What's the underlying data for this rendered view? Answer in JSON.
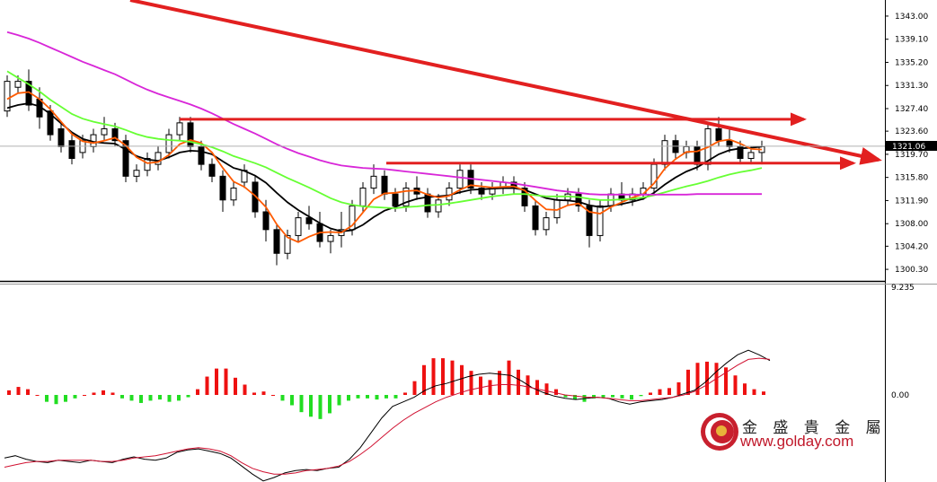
{
  "chart_data": [
    {
      "type": "candlestick",
      "panel": "price",
      "y_ticks": [
        "1343.00",
        "1339.10",
        "1335.20",
        "1331.30",
        "1327.40",
        "1323.60",
        "1319.70",
        "1315.80",
        "1311.90",
        "1308.00",
        "1304.20",
        "1300.30"
      ],
      "ylim": [
        1298.8,
        1344.2
      ],
      "current_price": "1321.06",
      "grid": false,
      "candles": [
        [
          1327.0,
          1333.0,
          1326.0,
          1332.0
        ],
        [
          1331.0,
          1333.0,
          1330.0,
          1332.0
        ],
        [
          1332.0,
          1334.0,
          1327.0,
          1328.0
        ],
        [
          1329.0,
          1331.0,
          1324.0,
          1326.0
        ],
        [
          1327.0,
          1328.0,
          1322.0,
          1323.0
        ],
        [
          1324.0,
          1325.0,
          1320.0,
          1321.0
        ],
        [
          1322.0,
          1323.0,
          1318.0,
          1319.0
        ],
        [
          1320.0,
          1323.0,
          1319.0,
          1322.0
        ],
        [
          1321.0,
          1324.0,
          1320.0,
          1323.0
        ],
        [
          1323.0,
          1326.0,
          1322.0,
          1324.0
        ],
        [
          1324.0,
          1325.0,
          1321.0,
          1322.0
        ],
        [
          1322.0,
          1323.0,
          1315.0,
          1316.0
        ],
        [
          1316.0,
          1318.0,
          1315.0,
          1317.0
        ],
        [
          1317.0,
          1320.0,
          1316.0,
          1319.0
        ],
        [
          1318.0,
          1321.0,
          1317.0,
          1320.0
        ],
        [
          1320.0,
          1324.0,
          1319.0,
          1323.0
        ],
        [
          1323.0,
          1326.0,
          1322.0,
          1325.0
        ],
        [
          1325.0,
          1326.0,
          1320.0,
          1321.0
        ],
        [
          1321.0,
          1322.0,
          1317.0,
          1318.0
        ],
        [
          1318.0,
          1319.0,
          1315.0,
          1316.0
        ],
        [
          1316.0,
          1317.0,
          1310.0,
          1312.0
        ],
        [
          1312.0,
          1315.0,
          1311.0,
          1314.0
        ],
        [
          1315.0,
          1318.0,
          1314.0,
          1317.0
        ],
        [
          1315.0,
          1316.0,
          1309.0,
          1310.0
        ],
        [
          1310.0,
          1312.0,
          1305.0,
          1307.0
        ],
        [
          1307.0,
          1308.0,
          1301.0,
          1303.0
        ],
        [
          1303.0,
          1307.0,
          1302.0,
          1306.0
        ],
        [
          1306.0,
          1310.0,
          1305.0,
          1309.0
        ],
        [
          1309.0,
          1311.0,
          1307.0,
          1308.0
        ],
        [
          1308.0,
          1310.0,
          1304.0,
          1305.0
        ],
        [
          1305.0,
          1307.0,
          1303.0,
          1306.0
        ],
        [
          1306.0,
          1310.0,
          1304.0,
          1307.0
        ],
        [
          1307.0,
          1312.0,
          1306.0,
          1311.0
        ],
        [
          1311.0,
          1315.0,
          1310.0,
          1314.0
        ],
        [
          1314.0,
          1318.0,
          1313.0,
          1316.0
        ],
        [
          1316.0,
          1317.0,
          1312.0,
          1313.0
        ],
        [
          1313.0,
          1314.0,
          1310.0,
          1311.0
        ],
        [
          1311.0,
          1315.0,
          1310.0,
          1314.0
        ],
        [
          1314.0,
          1316.0,
          1312.0,
          1313.0
        ],
        [
          1313.0,
          1314.0,
          1309.0,
          1310.0
        ],
        [
          1310.0,
          1313.0,
          1309.0,
          1312.0
        ],
        [
          1312.0,
          1315.0,
          1311.0,
          1314.0
        ],
        [
          1314.0,
          1318.0,
          1313.0,
          1317.0
        ],
        [
          1317.0,
          1318.0,
          1313.0,
          1314.0
        ],
        [
          1314.0,
          1315.0,
          1312.0,
          1313.0
        ],
        [
          1313.0,
          1315.0,
          1312.0,
          1314.0
        ],
        [
          1314.0,
          1316.0,
          1313.0,
          1315.0
        ],
        [
          1315.0,
          1316.0,
          1313.0,
          1314.0
        ],
        [
          1314.0,
          1315.0,
          1310.0,
          1311.0
        ],
        [
          1311.0,
          1312.0,
          1306.0,
          1307.0
        ],
        [
          1307.0,
          1310.0,
          1306.0,
          1309.0
        ],
        [
          1309.0,
          1313.0,
          1308.0,
          1312.0
        ],
        [
          1312.0,
          1314.0,
          1311.0,
          1313.0
        ],
        [
          1313.0,
          1314.0,
          1310.0,
          1311.0
        ],
        [
          1311.0,
          1312.0,
          1304.0,
          1306.0
        ],
        [
          1306.0,
          1312.0,
          1305.0,
          1311.0
        ],
        [
          1311.0,
          1314.0,
          1310.0,
          1313.0
        ],
        [
          1313.0,
          1315.0,
          1311.0,
          1312.0
        ],
        [
          1312.0,
          1314.0,
          1311.0,
          1313.0
        ],
        [
          1313.0,
          1315.0,
          1312.0,
          1314.0
        ],
        [
          1314.0,
          1319.0,
          1313.0,
          1318.0
        ],
        [
          1318.0,
          1323.0,
          1317.0,
          1322.0
        ],
        [
          1322.0,
          1323.0,
          1319.0,
          1320.0
        ],
        [
          1320.0,
          1322.0,
          1319.0,
          1321.0
        ],
        [
          1321.0,
          1322.0,
          1317.0,
          1318.0
        ],
        [
          1318.0,
          1325.0,
          1317.0,
          1324.0
        ],
        [
          1324.0,
          1326.0,
          1321.0,
          1322.0
        ],
        [
          1322.0,
          1324.0,
          1320.0,
          1321.0
        ],
        [
          1321.0,
          1322.0,
          1318.0,
          1319.0
        ],
        [
          1319.0,
          1321.0,
          1318.0,
          1320.0
        ],
        [
          1320.0,
          1322.0,
          1318.0,
          1321.0
        ]
      ],
      "moving_averages": [
        {
          "color": "#000000",
          "values": [
            1327.5,
            1328.0,
            1328.3,
            1327.8,
            1326.5,
            1324.9,
            1323.4,
            1322.3,
            1321.8,
            1321.6,
            1321.5,
            1320.5,
            1319.4,
            1318.8,
            1318.6,
            1319.2,
            1320.0,
            1320.3,
            1320.2,
            1319.7,
            1318.5,
            1317.4,
            1316.9,
            1316.1,
            1314.9,
            1313.2,
            1311.6,
            1310.3,
            1309.2,
            1308.1,
            1307.2,
            1306.7,
            1306.9,
            1307.8,
            1309.1,
            1310.2,
            1310.8,
            1311.6,
            1312.2,
            1312.5,
            1312.6,
            1312.8,
            1313.3,
            1313.7,
            1313.8,
            1313.9,
            1314.0,
            1314.0,
            1313.7,
            1313.0,
            1312.3,
            1312.0,
            1311.9,
            1311.7,
            1311.1,
            1310.8,
            1311.0,
            1311.3,
            1311.7,
            1312.2,
            1313.2,
            1314.6,
            1315.8,
            1316.8,
            1317.5,
            1318.6,
            1319.7,
            1320.4,
            1320.7,
            1320.8,
            1321.0
          ]
        },
        {
          "color": "#ff5a00",
          "values": [
            1329.0,
            1330.0,
            1330.2,
            1329.0,
            1327.3,
            1325.2,
            1323.1,
            1321.9,
            1321.6,
            1322.0,
            1322.5,
            1321.2,
            1319.2,
            1318.2,
            1318.4,
            1319.6,
            1321.4,
            1322.1,
            1321.6,
            1320.0,
            1317.4,
            1315.1,
            1314.2,
            1312.7,
            1310.8,
            1307.9,
            1305.7,
            1304.9,
            1305.8,
            1306.5,
            1306.6,
            1306.5,
            1307.7,
            1309.9,
            1312.1,
            1313.1,
            1313.2,
            1313.5,
            1313.6,
            1312.9,
            1312.4,
            1312.7,
            1313.7,
            1314.5,
            1314.3,
            1314.1,
            1314.2,
            1314.3,
            1313.6,
            1311.9,
            1310.4,
            1310.3,
            1311.1,
            1311.4,
            1310.0,
            1309.7,
            1310.8,
            1311.6,
            1312.4,
            1313.0,
            1314.8,
            1317.3,
            1318.9,
            1320.1,
            1320.2,
            1320.9,
            1321.9,
            1322.2,
            1321.5,
            1320.6,
            1320.5
          ]
        },
        {
          "color": "#66ff33",
          "values": [
            1333.7,
            1332.6,
            1331.5,
            1330.3,
            1328.9,
            1327.7,
            1326.5,
            1325.7,
            1325.2,
            1324.8,
            1324.4,
            1323.8,
            1323.1,
            1322.6,
            1322.3,
            1322.1,
            1322.0,
            1321.8,
            1321.4,
            1320.9,
            1320.2,
            1319.4,
            1318.8,
            1318.2,
            1317.5,
            1316.6,
            1315.7,
            1314.9,
            1314.1,
            1313.2,
            1312.3,
            1311.6,
            1311.2,
            1310.9,
            1310.8,
            1310.7,
            1310.6,
            1310.8,
            1310.9,
            1311.1,
            1311.2,
            1311.4,
            1311.7,
            1312.0,
            1312.3,
            1312.6,
            1312.8,
            1313.0,
            1313.0,
            1312.8,
            1312.6,
            1312.6,
            1312.6,
            1312.5,
            1312.2,
            1312.0,
            1312.0,
            1312.1,
            1312.2,
            1312.4,
            1312.8,
            1313.3,
            1313.8,
            1314.3,
            1314.7,
            1315.2,
            1315.8,
            1316.3,
            1316.7,
            1317.0,
            1317.4
          ]
        },
        {
          "color": "#d826d8",
          "values": [
            1340.3,
            1339.8,
            1339.2,
            1338.5,
            1337.7,
            1336.9,
            1336.1,
            1335.3,
            1334.6,
            1333.9,
            1333.2,
            1332.3,
            1331.4,
            1330.6,
            1329.9,
            1329.3,
            1328.7,
            1328.1,
            1327.4,
            1326.6,
            1325.7,
            1324.8,
            1324.0,
            1323.2,
            1322.3,
            1321.4,
            1320.6,
            1319.9,
            1319.3,
            1318.7,
            1318.2,
            1317.8,
            1317.6,
            1317.4,
            1317.3,
            1317.2,
            1317.0,
            1316.8,
            1316.6,
            1316.4,
            1316.2,
            1316.0,
            1315.8,
            1315.6,
            1315.4,
            1315.2,
            1315.0,
            1314.8,
            1314.5,
            1314.2,
            1313.9,
            1313.6,
            1313.4,
            1313.2,
            1313.0,
            1312.9,
            1312.9,
            1312.9,
            1312.9,
            1312.9,
            1312.9,
            1312.9,
            1312.9,
            1312.9,
            1313.0,
            1313.0,
            1313.0,
            1313.0,
            1313.0,
            1313.0,
            1313.0
          ]
        }
      ],
      "annotations": [
        {
          "type": "horizontal-line",
          "color": "#e22020",
          "y": 1325.6
        },
        {
          "type": "horizontal-line",
          "color": "#e22020",
          "y": 1318.2
        }
      ]
    },
    {
      "type": "macd",
      "panel": "indicator",
      "y_ticks": [
        "9.235",
        "0.00"
      ],
      "ylim": [
        -9.0,
        9.235
      ],
      "histogram": [
        0.4,
        0.7,
        0.5,
        0.0,
        -0.6,
        -0.8,
        -0.6,
        -0.3,
        0.0,
        0.2,
        0.4,
        0.2,
        -0.3,
        -0.5,
        -0.7,
        -0.5,
        -0.4,
        -0.6,
        -0.5,
        -0.2,
        0.5,
        1.6,
        2.3,
        2.3,
        1.5,
        0.9,
        0.2,
        0.3,
        0.0,
        -0.5,
        -0.9,
        -1.5,
        -1.9,
        -2.1,
        -1.6,
        -0.9,
        -0.5,
        -0.3,
        -0.3,
        -0.4,
        -0.3,
        -0.3,
        0.2,
        1.2,
        2.6,
        3.2,
        3.2,
        3.0,
        2.6,
        2.1,
        1.6,
        1.3,
        2.1,
        3.0,
        2.2,
        1.7,
        1.3,
        1.0,
        0.5,
        -0.2,
        -0.4,
        -0.6,
        -0.3,
        -0.2,
        -0.2,
        -0.3,
        -0.4,
        -0.1,
        0.2,
        0.5,
        0.6,
        1.1,
        2.2,
        2.8,
        2.9,
        2.8,
        2.4,
        1.7,
        1.0,
        0.5,
        0.3
      ],
      "macd_line": {
        "color": "#000000",
        "values": [
          -5.5,
          -5.3,
          -5.6,
          -5.8,
          -5.9,
          -5.7,
          -5.8,
          -5.9,
          -5.7,
          -5.8,
          -5.9,
          -5.6,
          -5.4,
          -5.6,
          -5.7,
          -5.5,
          -5.0,
          -4.8,
          -4.7,
          -4.9,
          -5.1,
          -5.5,
          -6.2,
          -6.9,
          -7.5,
          -7.2,
          -6.8,
          -6.6,
          -6.5,
          -6.6,
          -6.4,
          -6.3,
          -5.6,
          -4.6,
          -3.3,
          -2.0,
          -1.0,
          -0.6,
          -0.2,
          0.4,
          0.8,
          1.0,
          1.3,
          1.6,
          1.8,
          1.9,
          1.8,
          1.7,
          1.2,
          0.6,
          0.2,
          -0.1,
          -0.3,
          -0.4,
          -0.3,
          -0.2,
          -0.3,
          -0.6,
          -0.8,
          -0.6,
          -0.5,
          -0.4,
          -0.2,
          0.1,
          0.4,
          1.1,
          2.0,
          2.8,
          3.5,
          3.9,
          3.5,
          3.0
        ]
      },
      "signal_line": {
        "color": "#d01030",
        "values": [
          -6.3,
          -6.1,
          -5.9,
          -5.8,
          -5.8,
          -5.7,
          -5.7,
          -5.7,
          -5.7,
          -5.8,
          -5.8,
          -5.7,
          -5.5,
          -5.4,
          -5.3,
          -5.1,
          -4.9,
          -4.7,
          -4.6,
          -4.7,
          -4.9,
          -5.3,
          -5.9,
          -6.4,
          -6.7,
          -6.9,
          -6.9,
          -6.8,
          -6.6,
          -6.5,
          -6.4,
          -6.2,
          -5.8,
          -5.2,
          -4.5,
          -3.7,
          -2.9,
          -2.2,
          -1.6,
          -1.1,
          -0.6,
          -0.2,
          0.1,
          0.4,
          0.6,
          0.8,
          0.9,
          0.9,
          0.8,
          0.6,
          0.4,
          0.2,
          0.0,
          -0.1,
          -0.2,
          -0.2,
          -0.3,
          -0.4,
          -0.5,
          -0.5,
          -0.4,
          -0.3,
          -0.2,
          0.0,
          0.3,
          0.8,
          1.4,
          2.0,
          2.6,
          3.1,
          3.2,
          3.1
        ]
      }
    }
  ],
  "brand": {
    "name": "金 盛 貴 金 屬",
    "url": "www.golday.com"
  }
}
